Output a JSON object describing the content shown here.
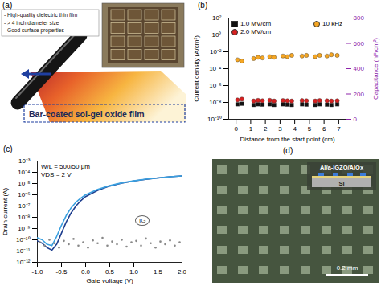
{
  "panel_a": {
    "label": "(a)",
    "bullets": [
      "- High-quality dielectric thin film",
      "- > 4 inch diameter size",
      "- Good surface properties"
    ],
    "caption": "Bar-coated sol-gel oxide film"
  },
  "chart_data": [
    {
      "type": "scatter",
      "panel_label": "(b)",
      "x_label": "Distance from the start point (cm)",
      "y_label": "Current density (A/cm²)",
      "y2_label": "Capacitance (nF/cm²)",
      "log": "y",
      "legend": "upper left",
      "xlim": [
        -0.5,
        7.5
      ],
      "xticks": [
        0,
        1,
        2,
        3,
        4,
        5,
        6,
        7
      ],
      "ylim": [
        1e-10,
        100
      ],
      "yticks": [
        {
          "value": 1e-10,
          "label": "10⁻¹⁰"
        },
        {
          "value": 1e-08,
          "label": "10⁻⁸"
        },
        {
          "value": 1e-06,
          "label": "10⁻⁶"
        },
        {
          "value": 0.0001,
          "label": "10⁻⁴"
        },
        {
          "value": 0.01,
          "label": "10⁻²"
        },
        {
          "value": 1,
          "label": "10⁰"
        },
        {
          "value": 100,
          "label": "10²"
        }
      ],
      "y2lim": [
        0,
        800
      ],
      "y2ticks": [
        0,
        200,
        400,
        600,
        800
      ],
      "x": [
        0.1,
        0.4,
        1.2,
        1.5,
        1.8,
        2.3,
        2.6,
        3.2,
        3.5,
        3.8,
        4.5,
        4.8,
        5.4,
        5.7,
        6.2,
        6.5,
        6.9
      ],
      "series": [
        {
          "name": "1.0 MV/cm",
          "color": "#111111",
          "marker": "square",
          "values": [
            6e-09,
            7e-09,
            5e-09,
            6e-09,
            5.5e-09,
            6e-09,
            5e-09,
            6e-09,
            5.5e-09,
            5e-09,
            6e-09,
            5.5e-09,
            5e-09,
            6e-09,
            5.5e-09,
            5e-09,
            6e-09
          ]
        },
        {
          "name": "2.0 MV/cm",
          "color": "#d62020",
          "marker": "circle",
          "values": [
            2e-08,
            2.5e-08,
            1.5e-08,
            1.8e-08,
            1.6e-08,
            1.8e-08,
            1.5e-08,
            1.7e-08,
            1.6e-08,
            1.5e-08,
            1.7e-08,
            1.6e-08,
            1.5e-08,
            1.7e-08,
            1.6e-08,
            1.5e-08,
            1.6e-08
          ]
        },
        {
          "name": "10 kHz",
          "color": "#f5a623",
          "marker": "circle",
          "axis": "y2",
          "values": [
            470,
            460,
            480,
            490,
            485,
            495,
            490,
            500,
            495,
            505,
            500,
            505,
            495,
            505,
            500,
            510,
            505
          ]
        }
      ]
    },
    {
      "type": "line",
      "panel_label": "(c)",
      "x_label": "Gate voltage (V)",
      "y_label": "Drain current (A)",
      "annotations": [
        "W/L = 500/50 μm",
        "VDS = 2 V"
      ],
      "log": "y",
      "xlim": [
        -1,
        2
      ],
      "xticks": [
        {
          "value": -1,
          "label": "-1.0"
        },
        {
          "value": -0.5,
          "label": "-0.5"
        },
        {
          "value": 0,
          "label": "0.0"
        },
        {
          "value": 0.5,
          "label": "0.5"
        },
        {
          "value": 1,
          "label": "1.0"
        },
        {
          "value": 1.5,
          "label": "1.5"
        },
        {
          "value": 2,
          "label": "2.0"
        }
      ],
      "ylim": [
        1e-12,
        0.001
      ],
      "yticks": [
        {
          "value": 1e-12,
          "label": "10⁻¹²"
        },
        {
          "value": 1e-11,
          "label": "10⁻¹¹"
        },
        {
          "value": 1e-10,
          "label": "10⁻¹⁰"
        },
        {
          "value": 1e-09,
          "label": "10⁻⁹"
        },
        {
          "value": 1e-08,
          "label": "10⁻⁸"
        },
        {
          "value": 1e-07,
          "label": "10⁻⁷"
        },
        {
          "value": 1e-06,
          "label": "10⁻⁶"
        },
        {
          "value": 1e-05,
          "label": "10⁻⁵"
        },
        {
          "value": 0.0001,
          "label": "10⁻⁴"
        },
        {
          "value": 0.001,
          "label": "10⁻³"
        }
      ],
      "series": [
        {
          "color": "#1f3f8f",
          "x": [
            -1,
            -0.9,
            -0.8,
            -0.7,
            -0.6,
            -0.5,
            -0.4,
            -0.3,
            -0.2,
            -0.1,
            0,
            0.25,
            0.5,
            0.75,
            1,
            1.25,
            1.5,
            1.75,
            2
          ],
          "values": [
            8e-11,
            5e-11,
            2e-11,
            1.2e-11,
            4e-11,
            4e-10,
            4e-09,
            2.5e-08,
            1e-07,
            3e-07,
            7e-07,
            2.5e-06,
            6e-06,
            1.1e-05,
            1.7e-05,
            2.4e-05,
            3.2e-05,
            4e-05,
            4.8e-05
          ]
        },
        {
          "color": "#3aa0e0",
          "x": [
            -1,
            -0.9,
            -0.8,
            -0.7,
            -0.6,
            -0.5,
            -0.4,
            -0.3,
            -0.2,
            -0.1,
            0,
            0.25,
            0.5,
            0.75,
            1,
            1.25,
            1.5,
            1.75,
            2
          ],
          "values": [
            1.5e-10,
            1e-10,
            4e-11,
            3e-11,
            2e-10,
            2e-09,
            1.5e-08,
            7e-08,
            2.2e-07,
            5e-07,
            1e-06,
            3e-06,
            6.5e-06,
            1.15e-05,
            1.75e-05,
            2.45e-05,
            3.2e-05,
            4e-05,
            4.8e-05
          ]
        },
        {
          "name": "IG",
          "type": "scatter",
          "marker": "circle",
          "color": "#888888",
          "x": [
            -0.95,
            -0.85,
            -0.75,
            -0.65,
            -0.55,
            -0.45,
            -0.35,
            -0.25,
            -0.15,
            -0.05,
            0.05,
            0.15,
            0.25,
            0.35,
            0.45,
            0.55,
            0.65,
            0.75,
            0.85,
            0.95,
            1.05,
            1.15,
            1.25,
            1.35,
            1.45,
            1.55,
            1.65,
            1.75,
            1.85,
            1.95
          ],
          "values": [
            6e-11,
            3e-11,
            1e-10,
            5e-11,
            2e-11,
            8e-11,
            4e-11,
            1.2e-10,
            3e-11,
            6e-11,
            2e-11,
            9e-11,
            5e-11,
            1.5e-10,
            3e-11,
            7e-11,
            4e-11,
            1e-10,
            2.5e-11,
            6e-11,
            8e-11,
            3e-11,
            1.3e-10,
            5e-11,
            2e-11,
            7e-11,
            4e-11,
            9e-11,
            3e-11,
            6e-11
          ]
        }
      ]
    }
  ],
  "panel_d": {
    "label": "(d)",
    "layers": "Al/a-IGZO/AlOx",
    "substrate": "Si",
    "scale_bar": "0.2 mm"
  }
}
